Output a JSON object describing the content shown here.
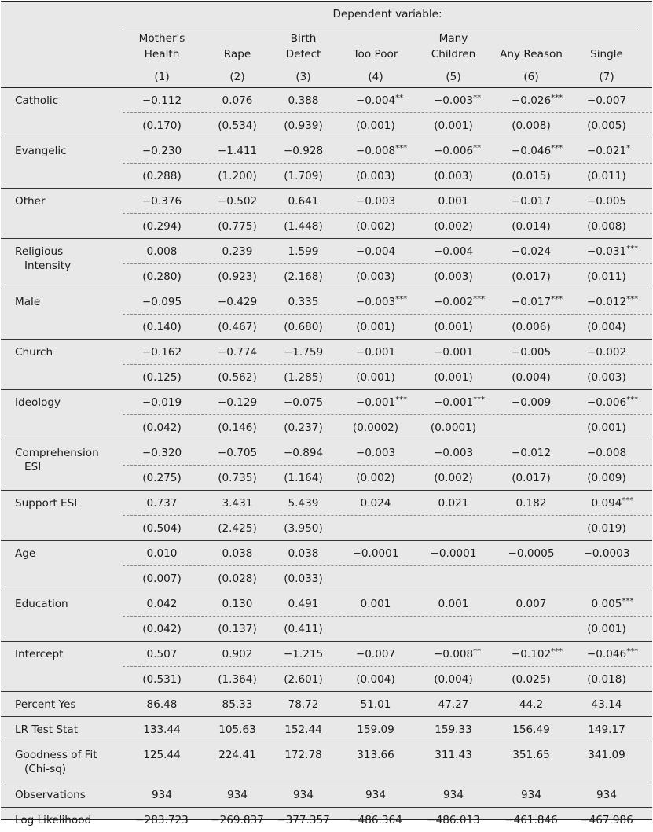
{
  "header": {
    "dependent_variable_label": "Dependent variable:",
    "columns": [
      {
        "name_line1": "Mother's",
        "name_line2": "Health",
        "num": "(1)"
      },
      {
        "name_line1": "",
        "name_line2": "Rape",
        "num": "(2)"
      },
      {
        "name_line1": "Birth",
        "name_line2": "Defect",
        "num": "(3)"
      },
      {
        "name_line1": "",
        "name_line2": "Too Poor",
        "num": "(4)"
      },
      {
        "name_line1": "Many",
        "name_line2": "Children",
        "num": "(5)"
      },
      {
        "name_line1": "",
        "name_line2": "Any Reason",
        "num": "(6)"
      },
      {
        "name_line1": "",
        "name_line2": "Single",
        "num": "(7)"
      }
    ]
  },
  "rows": [
    {
      "label1": "Catholic",
      "label2": "",
      "coef": [
        "−0.112",
        "0.076",
        "0.388",
        "−0.004",
        "−0.003",
        "−0.026",
        "−0.007"
      ],
      "stars": [
        "",
        "",
        "",
        "**",
        "**",
        "***",
        ""
      ],
      "se": [
        "(0.170)",
        "(0.534)",
        "(0.939)",
        "(0.001)",
        "(0.001)",
        "(0.008)",
        "(0.005)"
      ]
    },
    {
      "label1": "Evangelic",
      "label2": "",
      "coef": [
        "−0.230",
        "−1.411",
        "−0.928",
        "−0.008",
        "−0.006",
        "−0.046",
        "−0.021"
      ],
      "stars": [
        "",
        "",
        "",
        "***",
        "**",
        "***",
        "*"
      ],
      "se": [
        "(0.288)",
        "(1.200)",
        "(1.709)",
        "(0.003)",
        "(0.003)",
        "(0.015)",
        "(0.011)"
      ]
    },
    {
      "label1": "Other",
      "label2": "",
      "coef": [
        "−0.376",
        "−0.502",
        "0.641",
        "−0.003",
        "0.001",
        "−0.017",
        "−0.005"
      ],
      "stars": [
        "",
        "",
        "",
        "",
        "",
        "",
        ""
      ],
      "se": [
        "(0.294)",
        "(0.775)",
        "(1.448)",
        "(0.002)",
        "(0.002)",
        "(0.014)",
        "(0.008)"
      ]
    },
    {
      "label1": "Religious",
      "label2": "Intensity",
      "coef": [
        "0.008",
        "0.239",
        "1.599",
        "−0.004",
        "−0.004",
        "−0.024",
        "−0.031"
      ],
      "stars": [
        "",
        "",
        "",
        "",
        "",
        "",
        "***"
      ],
      "se": [
        "(0.280)",
        "(0.923)",
        "(2.168)",
        "(0.003)",
        "(0.003)",
        "(0.017)",
        "(0.011)"
      ]
    },
    {
      "label1": "Male",
      "label2": "",
      "coef": [
        "−0.095",
        "−0.429",
        "0.335",
        "−0.003",
        "−0.002",
        "−0.017",
        "−0.012"
      ],
      "stars": [
        "",
        "",
        "",
        "***",
        "***",
        "***",
        "***"
      ],
      "se": [
        "(0.140)",
        "(0.467)",
        "(0.680)",
        "(0.001)",
        "(0.001)",
        "(0.006)",
        "(0.004)"
      ]
    },
    {
      "label1": "Church",
      "label2": "",
      "coef": [
        "−0.162",
        "−0.774",
        "−1.759",
        "−0.001",
        "−0.001",
        "−0.005",
        "−0.002"
      ],
      "stars": [
        "",
        "",
        "",
        "",
        "",
        "",
        ""
      ],
      "se": [
        "(0.125)",
        "(0.562)",
        "(1.285)",
        "(0.001)",
        "(0.001)",
        "(0.004)",
        "(0.003)"
      ]
    },
    {
      "label1": "Ideology",
      "label2": "",
      "coef": [
        "−0.019",
        "−0.129",
        "−0.075",
        "−0.001",
        "−0.001",
        "−0.009",
        "−0.006"
      ],
      "stars": [
        "",
        "",
        "",
        "***",
        "***",
        "",
        "***"
      ],
      "se": [
        "(0.042)",
        "(0.146)",
        "(0.237)",
        "(0.0002)",
        "(0.0001)",
        "",
        "(0.001)"
      ]
    },
    {
      "label1": "Comprehension",
      "label2": "ESI",
      "coef": [
        "−0.320",
        "−0.705",
        "−0.894",
        "−0.003",
        "−0.003",
        "−0.012",
        "−0.008"
      ],
      "stars": [
        "",
        "",
        "",
        "",
        "",
        "",
        ""
      ],
      "se": [
        "(0.275)",
        "(0.735)",
        "(1.164)",
        "(0.002)",
        "(0.002)",
        "(0.017)",
        "(0.009)"
      ]
    },
    {
      "label1": "Support ESI",
      "label2": "",
      "coef": [
        "0.737",
        "3.431",
        "5.439",
        "0.024",
        "0.021",
        "0.182",
        "0.094"
      ],
      "stars": [
        "",
        "",
        "",
        "",
        "",
        "",
        "***"
      ],
      "se": [
        "(0.504)",
        "(2.425)",
        "(3.950)",
        "",
        "",
        "",
        "(0.019)"
      ]
    },
    {
      "label1": "Age",
      "label2": "",
      "coef": [
        "0.010",
        "0.038",
        "0.038",
        "−0.0001",
        "−0.0001",
        "−0.0005",
        "−0.0003"
      ],
      "stars": [
        "",
        "",
        "",
        "",
        "",
        "",
        ""
      ],
      "se": [
        "(0.007)",
        "(0.028)",
        "(0.033)",
        "",
        "",
        "",
        ""
      ]
    },
    {
      "label1": "Education",
      "label2": "",
      "coef": [
        "0.042",
        "0.130",
        "0.491",
        "0.001",
        "0.001",
        "0.007",
        "0.005"
      ],
      "stars": [
        "",
        "",
        "",
        "",
        "",
        "",
        "***"
      ],
      "se": [
        "(0.042)",
        "(0.137)",
        "(0.411)",
        "",
        "",
        "",
        "(0.001)"
      ]
    },
    {
      "label1": "Intercept",
      "label2": "",
      "coef": [
        "0.507",
        "0.902",
        "−1.215",
        "−0.007",
        "−0.008",
        "−0.102",
        "−0.046"
      ],
      "stars": [
        "",
        "",
        "",
        "",
        "**",
        "***",
        "***"
      ],
      "se": [
        "(0.531)",
        "(1.364)",
        "(2.601)",
        "(0.004)",
        "(0.004)",
        "(0.025)",
        "(0.018)"
      ]
    }
  ],
  "stats": [
    {
      "label1": "Percent Yes",
      "label2": "",
      "values": [
        "86.48",
        "85.33",
        "78.72",
        "51.01",
        "47.27",
        "44.2",
        "43.14"
      ]
    },
    {
      "label1": "LR Test Stat",
      "label2": "",
      "values": [
        "133.44",
        "105.63",
        "152.44",
        "159.09",
        "159.33",
        "156.49",
        "149.17"
      ]
    },
    {
      "label1": "Goodness of Fit",
      "label2": "(Chi-sq)",
      "values": [
        "125.44",
        "224.41",
        "172.78",
        "313.66",
        "311.43",
        "351.65",
        "341.09"
      ]
    },
    {
      "label1": "Observations",
      "label2": "",
      "values": [
        "934",
        "934",
        "934",
        "934",
        "934",
        "934",
        "934"
      ]
    },
    {
      "label1": "Log Likelihood",
      "label2": "",
      "values": [
        "−283.723",
        "−269.837",
        "−377.357",
        "−486.364",
        "−486.013",
        "−461.846",
        "−467.986"
      ]
    }
  ]
}
